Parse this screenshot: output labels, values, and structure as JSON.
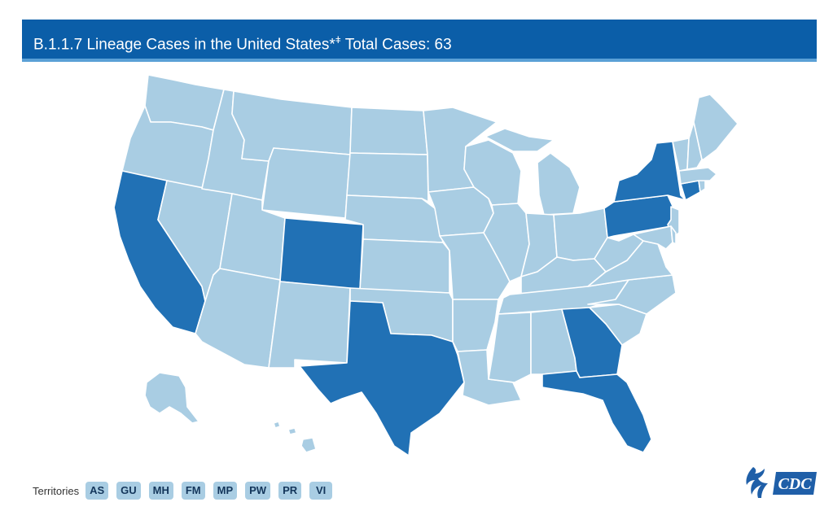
{
  "header": {
    "title": "B.1.1.7 Lineage Cases in the United States*",
    "title_mark": "ǂ",
    "total_label": "Total Cases: 63"
  },
  "colors": {
    "header_bg": "#0b5ea8",
    "no_cases": "#a9cde3",
    "has_cases": "#2171b5",
    "border": "#ffffff"
  },
  "legend_states_with_cases": [
    "CA",
    "CO",
    "TX",
    "GA",
    "FL",
    "NY",
    "PA",
    "CT"
  ],
  "territories": {
    "label": "Territories",
    "items": [
      "AS",
      "GU",
      "MH",
      "FM",
      "MP",
      "PW",
      "PR",
      "VI"
    ]
  },
  "logos": {
    "hhs": "hhs-eagle-logo",
    "cdc": "CDC"
  }
}
